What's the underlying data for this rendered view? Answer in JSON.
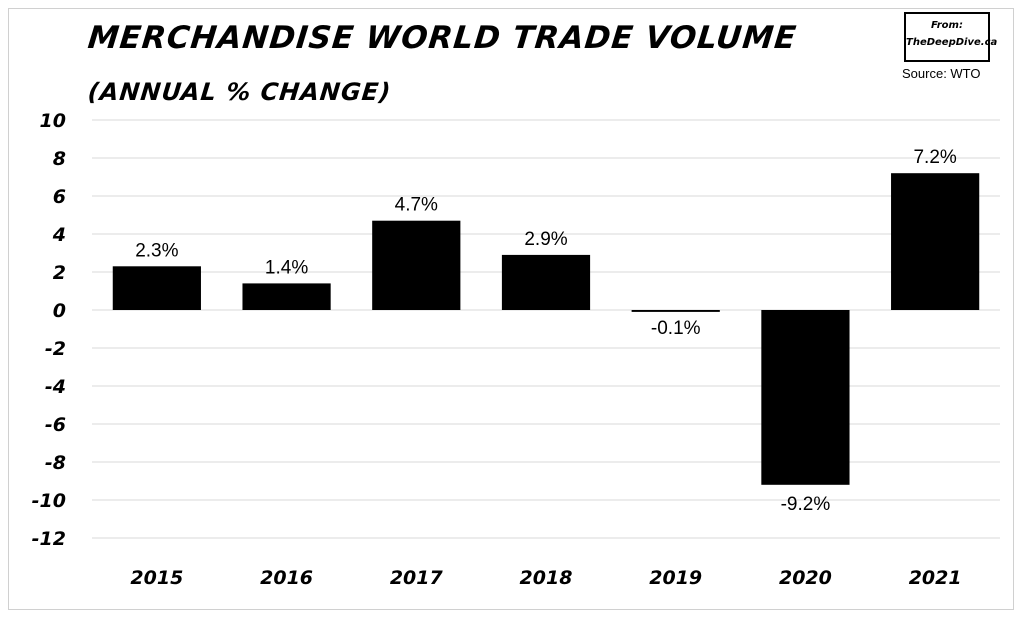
{
  "header": {
    "title": "Merchandise World Trade Volume",
    "subtitle": "(annual % change)",
    "brand_line1": "From:",
    "brand_line2": "TheDeepDive.ca",
    "source": "Source: WTO"
  },
  "chart_data": {
    "type": "bar",
    "title": "Merchandise World Trade Volume",
    "subtitle": "(annual % change)",
    "categories": [
      "2015",
      "2016",
      "2017",
      "2018",
      "2019",
      "2020",
      "2021"
    ],
    "values": [
      2.3,
      1.4,
      4.7,
      2.9,
      -0.1,
      -9.2,
      7.2
    ],
    "data_labels": [
      "2.3%",
      "1.4%",
      "4.7%",
      "2.9%",
      "-0.1%",
      "-9.2%",
      "7.2%"
    ],
    "yticks": [
      10,
      8,
      6,
      4,
      2,
      0,
      -2,
      -4,
      -6,
      -8,
      -10,
      -12
    ],
    "ylim": [
      -12,
      10
    ],
    "grid": true,
    "legend": "none",
    "bar_color": "#000000",
    "grid_color": "#d9d9d9"
  }
}
